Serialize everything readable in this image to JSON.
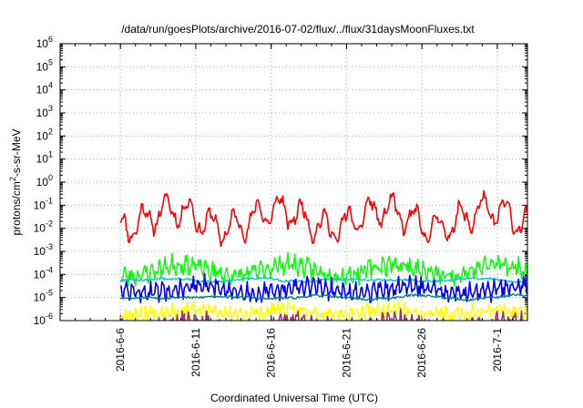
{
  "chart_data": {
    "type": "line",
    "title": "/data/run/goesPlots/archive/2016-07-02/flux/../flux/31daysMoonFluxes.txt",
    "xlabel": "Coordinated Universal Time (UTC)",
    "ylabel": {
      "prefix": "protons/cm",
      "sup": "2",
      "suffix": "-s-sr-MeV"
    },
    "yscale": "log",
    "ylim": [
      1e-06,
      1000000.0
    ],
    "y_ticks": [
      {
        "base": "10",
        "exp": "-6"
      },
      {
        "base": "10",
        "exp": "-5"
      },
      {
        "base": "10",
        "exp": "-4"
      },
      {
        "base": "10",
        "exp": "-3"
      },
      {
        "base": "10",
        "exp": "-2"
      },
      {
        "base": "10",
        "exp": "-1"
      },
      {
        "base": "10",
        "exp": "0"
      },
      {
        "base": "10",
        "exp": "1"
      },
      {
        "base": "10",
        "exp": "2"
      },
      {
        "base": "10",
        "exp": "3"
      },
      {
        "base": "10",
        "exp": "4"
      },
      {
        "base": "10",
        "exp": "5"
      },
      {
        "base": "10",
        "exp": "6"
      }
    ],
    "xlim": [
      "2016-06-02",
      "2016-07-03"
    ],
    "x_ticks": [
      "2016-6-6",
      "2016-6-11",
      "2016-6-16",
      "2016-6-21",
      "2016-6-26",
      "2016-7-1"
    ],
    "x_tick_dates": [
      "2016-06-06",
      "2016-06-11",
      "2016-06-16",
      "2016-06-21",
      "2016-06-26",
      "2016-07-01"
    ],
    "grid": true,
    "legend": "none",
    "series": [
      {
        "color": "#ff0000",
        "stroke": 1.6,
        "level": 2.0,
        "spread": 0.4,
        "cycle_days": 1.5,
        "cycle_amp": 0.55,
        "noise": 0.18,
        "seed": 11
      },
      {
        "color": "#00ff00",
        "stroke": 1.4,
        "level": 0.012,
        "spread": 0.25,
        "cycle_days": 0.45,
        "cycle_amp": 0.2,
        "noise": 0.3,
        "seed": 23
      },
      {
        "color": "#00c8c8",
        "stroke": 1.4,
        "level": 0.0045,
        "spread": 0.05,
        "cycle_days": 5.0,
        "cycle_amp": 0.04,
        "noise": 0.05,
        "seed": 31
      },
      {
        "color": "#0000ff",
        "stroke": 1.6,
        "level": 0.0017,
        "spread": 0.15,
        "cycle_days": 0.4,
        "cycle_amp": 0.25,
        "noise": 0.22,
        "seed": 47
      },
      {
        "color": "#008080",
        "stroke": 1.4,
        "level": 0.0008,
        "spread": 0.05,
        "cycle_days": 6.0,
        "cycle_amp": 0.04,
        "noise": 0.05,
        "seed": 53
      },
      {
        "color": "#ffff00",
        "stroke": 1.4,
        "level": 0.00018,
        "spread": 0.1,
        "cycle_days": 0.35,
        "cycle_amp": 0.15,
        "noise": 0.25,
        "seed": 67
      },
      {
        "color": "#993366",
        "stroke": 1.6,
        "level": 5e-05,
        "spread": 0.2,
        "cycle_days": 0.4,
        "cycle_amp": 0.2,
        "noise": 0.28,
        "seed": 79
      }
    ]
  }
}
